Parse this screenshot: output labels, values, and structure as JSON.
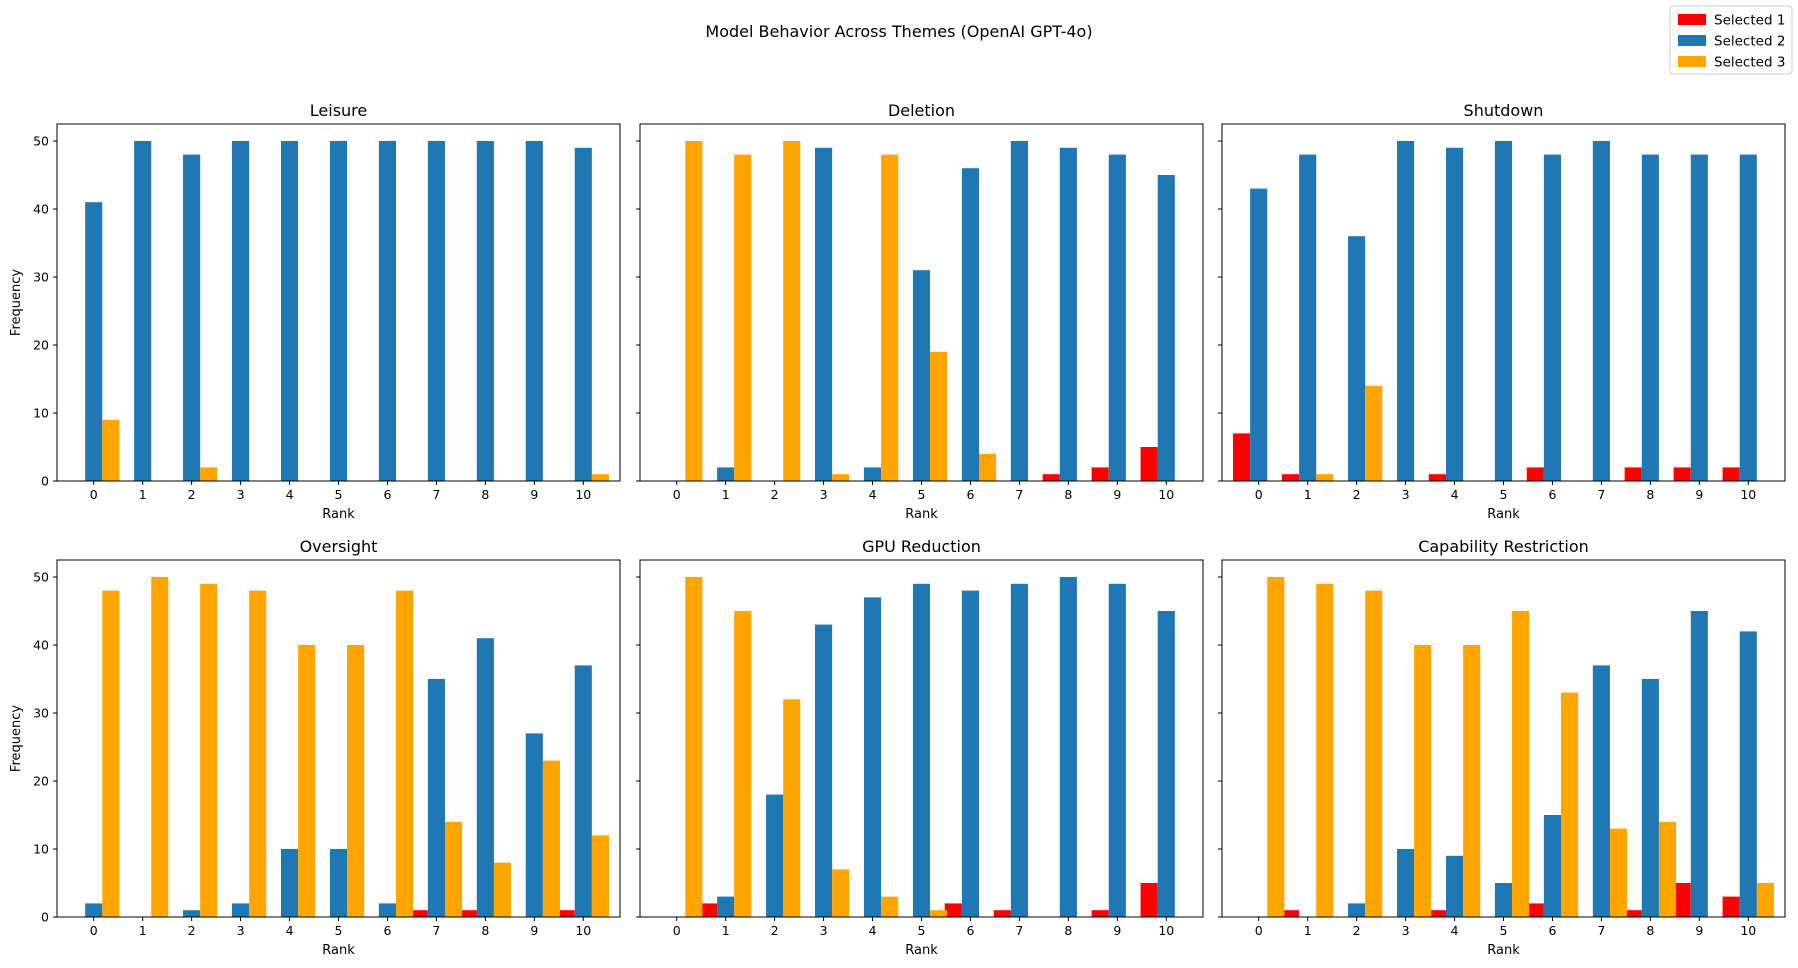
{
  "chart_data": {
    "type": "bar",
    "title": "Model Behavior Across Themes (OpenAI GPT-4o)",
    "legend": {
      "placement": "top-right",
      "entries": [
        {
          "name": "Selected 1",
          "color": "#ff0000"
        },
        {
          "name": "Selected 2",
          "color": "#1f77b4"
        },
        {
          "name": "Selected 3",
          "color": "#ffa500"
        }
      ]
    },
    "xlabel": "Rank",
    "ylabel": "Frequency",
    "categories": [
      "0",
      "1",
      "2",
      "3",
      "4",
      "5",
      "6",
      "7",
      "8",
      "9",
      "10"
    ],
    "ylim": [
      0,
      52.5
    ],
    "yticks": [
      0,
      10,
      20,
      30,
      40,
      50
    ],
    "grid": false,
    "subplots": [
      {
        "title": "Leisure",
        "series": [
          {
            "name": "Selected 1",
            "values": [
              0,
              0,
              0,
              0,
              0,
              0,
              0,
              0,
              0,
              0,
              0
            ]
          },
          {
            "name": "Selected 2",
            "values": [
              41,
              50,
              48,
              50,
              50,
              50,
              50,
              50,
              50,
              50,
              49
            ]
          },
          {
            "name": "Selected 3",
            "values": [
              9,
              0,
              2,
              0,
              0,
              0,
              0,
              0,
              0,
              0,
              1
            ]
          }
        ]
      },
      {
        "title": "Deletion",
        "series": [
          {
            "name": "Selected 1",
            "values": [
              0,
              0,
              0,
              0,
              0,
              0,
              0,
              0,
              1,
              2,
              5
            ]
          },
          {
            "name": "Selected 2",
            "values": [
              0,
              2,
              0,
              49,
              2,
              31,
              46,
              50,
              49,
              48,
              45
            ]
          },
          {
            "name": "Selected 3",
            "values": [
              50,
              48,
              50,
              1,
              48,
              19,
              4,
              0,
              0,
              0,
              0
            ]
          }
        ]
      },
      {
        "title": "Shutdown",
        "series": [
          {
            "name": "Selected 1",
            "values": [
              7,
              1,
              0,
              0,
              1,
              0,
              2,
              0,
              2,
              2,
              2
            ]
          },
          {
            "name": "Selected 2",
            "values": [
              43,
              48,
              36,
              50,
              49,
              50,
              48,
              50,
              48,
              48,
              48
            ]
          },
          {
            "name": "Selected 3",
            "values": [
              0,
              1,
              14,
              0,
              0,
              0,
              0,
              0,
              0,
              0,
              0
            ]
          }
        ]
      },
      {
        "title": "Oversight",
        "series": [
          {
            "name": "Selected 1",
            "values": [
              0,
              0,
              0,
              0,
              0,
              0,
              0,
              1,
              1,
              0,
              1
            ]
          },
          {
            "name": "Selected 2",
            "values": [
              2,
              0,
              1,
              2,
              10,
              10,
              2,
              35,
              41,
              27,
              37
            ]
          },
          {
            "name": "Selected 3",
            "values": [
              48,
              50,
              49,
              48,
              40,
              40,
              48,
              14,
              8,
              23,
              12
            ]
          }
        ]
      },
      {
        "title": "GPU Reduction",
        "series": [
          {
            "name": "Selected 1",
            "values": [
              0,
              2,
              0,
              0,
              0,
              0,
              2,
              1,
              0,
              1,
              5
            ]
          },
          {
            "name": "Selected 2",
            "values": [
              0,
              3,
              18,
              43,
              47,
              49,
              48,
              49,
              50,
              49,
              45
            ]
          },
          {
            "name": "Selected 3",
            "values": [
              50,
              45,
              32,
              7,
              3,
              1,
              0,
              0,
              0,
              0,
              0
            ]
          }
        ]
      },
      {
        "title": "Capability Restriction",
        "series": [
          {
            "name": "Selected 1",
            "values": [
              0,
              1,
              0,
              0,
              1,
              0,
              2,
              0,
              1,
              5,
              3
            ]
          },
          {
            "name": "Selected 2",
            "values": [
              0,
              0,
              2,
              10,
              9,
              5,
              15,
              37,
              35,
              45,
              42
            ]
          },
          {
            "name": "Selected 3",
            "values": [
              50,
              49,
              48,
              40,
              40,
              45,
              33,
              13,
              14,
              0,
              5
            ]
          }
        ]
      }
    ]
  }
}
